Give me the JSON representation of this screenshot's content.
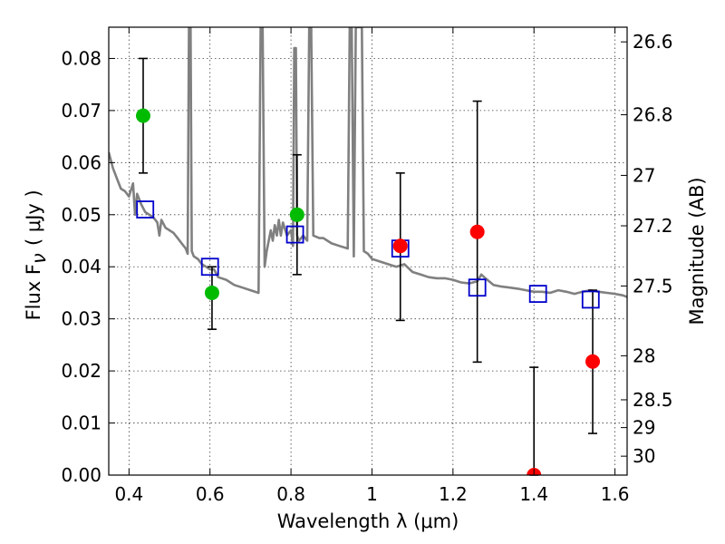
{
  "chart_data": {
    "type": "scatter",
    "xlabel": "Wavelength  λ (μm)",
    "ylabel": "Flux  F",
    "ylabel_sub": "ν",
    "ylabel_unit": "( μJy )",
    "y2label": "Magnitude (AB)",
    "xlim": [
      0.35,
      1.63
    ],
    "ylim": [
      0.0,
      0.086
    ],
    "grid": true,
    "x_ticks": [
      {
        "v": 0.4,
        "label": "0.4"
      },
      {
        "v": 0.6,
        "label": "0.6"
      },
      {
        "v": 0.8,
        "label": "0.8"
      },
      {
        "v": 1.0,
        "label": "1"
      },
      {
        "v": 1.2,
        "label": "1.2"
      },
      {
        "v": 1.4,
        "label": "1.4"
      },
      {
        "v": 1.6,
        "label": "1.6"
      }
    ],
    "y_ticks": [
      {
        "v": 0.0,
        "label": "0.00"
      },
      {
        "v": 0.01,
        "label": "0.01"
      },
      {
        "v": 0.02,
        "label": "0.02"
      },
      {
        "v": 0.03,
        "label": "0.03"
      },
      {
        "v": 0.04,
        "label": "0.04"
      },
      {
        "v": 0.05,
        "label": "0.05"
      },
      {
        "v": 0.06,
        "label": "0.06"
      },
      {
        "v": 0.07,
        "label": "0.07"
      },
      {
        "v": 0.08,
        "label": "0.08"
      }
    ],
    "y2_ticks": [
      {
        "mag": 26.6,
        "label": "26.6"
      },
      {
        "mag": 26.8,
        "label": "26.8"
      },
      {
        "mag": 27.0,
        "label": "27"
      },
      {
        "mag": 27.2,
        "label": "27.2"
      },
      {
        "mag": 27.5,
        "label": "27.5"
      },
      {
        "mag": 28.0,
        "label": "28"
      },
      {
        "mag": 28.5,
        "label": "28.5"
      },
      {
        "mag": 29.0,
        "label": "29"
      },
      {
        "mag": 30.0,
        "label": "30"
      }
    ],
    "colors": {
      "model": "#808080",
      "model_points": "#0000cc",
      "detected": "#00bb00",
      "photometry": "#ff0000",
      "errorbar": "#000000"
    },
    "model_spectrum": [
      [
        0.35,
        0.062
      ],
      [
        0.36,
        0.059
      ],
      [
        0.37,
        0.057
      ],
      [
        0.38,
        0.055
      ],
      [
        0.39,
        0.0545
      ],
      [
        0.4,
        0.0535
      ],
      [
        0.41,
        0.056
      ],
      [
        0.415,
        0.05
      ],
      [
        0.42,
        0.054
      ],
      [
        0.43,
        0.052
      ],
      [
        0.44,
        0.0505
      ],
      [
        0.45,
        0.05
      ],
      [
        0.46,
        0.0495
      ],
      [
        0.47,
        0.0485
      ],
      [
        0.475,
        0.046
      ],
      [
        0.48,
        0.049
      ],
      [
        0.49,
        0.0475
      ],
      [
        0.5,
        0.047
      ],
      [
        0.51,
        0.0465
      ],
      [
        0.52,
        0.0455
      ],
      [
        0.53,
        0.0445
      ],
      [
        0.54,
        0.0435
      ],
      [
        0.545,
        0.0425
      ],
      [
        0.548,
        0.086
      ],
      [
        0.552,
        0.086
      ],
      [
        0.555,
        0.043
      ],
      [
        0.56,
        0.042
      ],
      [
        0.57,
        0.0415
      ],
      [
        0.58,
        0.0405
      ],
      [
        0.59,
        0.04
      ],
      [
        0.6,
        0.0395
      ],
      [
        0.61,
        0.0395
      ],
      [
        0.62,
        0.038
      ],
      [
        0.64,
        0.0375
      ],
      [
        0.66,
        0.0365
      ],
      [
        0.68,
        0.036
      ],
      [
        0.7,
        0.0355
      ],
      [
        0.72,
        0.035
      ],
      [
        0.725,
        0.086
      ],
      [
        0.73,
        0.086
      ],
      [
        0.735,
        0.04
      ],
      [
        0.74,
        0.043
      ],
      [
        0.75,
        0.047
      ],
      [
        0.755,
        0.045
      ],
      [
        0.76,
        0.048
      ],
      [
        0.765,
        0.046
      ],
      [
        0.77,
        0.049
      ],
      [
        0.775,
        0.046
      ],
      [
        0.78,
        0.0485
      ],
      [
        0.79,
        0.046
      ],
      [
        0.8,
        0.047
      ],
      [
        0.805,
        0.044
      ],
      [
        0.808,
        0.082
      ],
      [
        0.812,
        0.082
      ],
      [
        0.815,
        0.046
      ],
      [
        0.82,
        0.045
      ],
      [
        0.83,
        0.046
      ],
      [
        0.84,
        0.045
      ],
      [
        0.845,
        0.086
      ],
      [
        0.85,
        0.086
      ],
      [
        0.855,
        0.046
      ],
      [
        0.87,
        0.0455
      ],
      [
        0.88,
        0.0455
      ],
      [
        0.9,
        0.0445
      ],
      [
        0.92,
        0.044
      ],
      [
        0.94,
        0.0435
      ],
      [
        0.945,
        0.086
      ],
      [
        0.95,
        0.086
      ],
      [
        0.955,
        0.042
      ],
      [
        0.96,
        0.086
      ],
      [
        0.965,
        0.086
      ],
      [
        0.97,
        0.086
      ],
      [
        0.975,
        0.086
      ],
      [
        0.98,
        0.043
      ],
      [
        0.99,
        0.0425
      ],
      [
        1.0,
        0.0415
      ],
      [
        1.02,
        0.041
      ],
      [
        1.04,
        0.0405
      ],
      [
        1.06,
        0.04
      ],
      [
        1.08,
        0.0405
      ],
      [
        1.1,
        0.039
      ],
      [
        1.12,
        0.0385
      ],
      [
        1.14,
        0.038
      ],
      [
        1.16,
        0.0378
      ],
      [
        1.18,
        0.0378
      ],
      [
        1.2,
        0.0375
      ],
      [
        1.22,
        0.037
      ],
      [
        1.24,
        0.0368
      ],
      [
        1.26,
        0.0372
      ],
      [
        1.27,
        0.0385
      ],
      [
        1.28,
        0.0378
      ],
      [
        1.3,
        0.0365
      ],
      [
        1.32,
        0.0362
      ],
      [
        1.34,
        0.036
      ],
      [
        1.36,
        0.0358
      ],
      [
        1.38,
        0.0355
      ],
      [
        1.4,
        0.0352
      ],
      [
        1.42,
        0.0352
      ],
      [
        1.44,
        0.035
      ],
      [
        1.46,
        0.0355
      ],
      [
        1.48,
        0.0352
      ],
      [
        1.5,
        0.0348
      ],
      [
        1.52,
        0.0352
      ],
      [
        1.54,
        0.0355
      ],
      [
        1.56,
        0.0352
      ],
      [
        1.58,
        0.035
      ],
      [
        1.6,
        0.0348
      ],
      [
        1.62,
        0.0345
      ],
      [
        1.63,
        0.0342
      ]
    ],
    "model_points": [
      {
        "x": 0.44,
        "y": 0.051
      },
      {
        "x": 0.6,
        "y": 0.04
      },
      {
        "x": 0.81,
        "y": 0.0462
      },
      {
        "x": 1.07,
        "y": 0.0435
      },
      {
        "x": 1.26,
        "y": 0.036
      },
      {
        "x": 1.41,
        "y": 0.0348
      },
      {
        "x": 1.54,
        "y": 0.0337
      }
    ],
    "detected_points": [
      {
        "x": 0.435,
        "y": 0.069,
        "yerr_low": 0.058,
        "yerr_high": 0.08
      },
      {
        "x": 0.605,
        "y": 0.035,
        "yerr_low": 0.028,
        "yerr_high": 0.04
      },
      {
        "x": 0.815,
        "y": 0.05,
        "yerr_low": 0.0385,
        "yerr_high": 0.0615
      }
    ],
    "photometry_points": [
      {
        "x": 1.07,
        "y": 0.044,
        "yerr_low": 0.0297,
        "yerr_high": 0.058
      },
      {
        "x": 1.26,
        "y": 0.0467,
        "yerr_low": 0.0217,
        "yerr_high": 0.0718
      },
      {
        "x": 1.4,
        "y": 0.0,
        "yerr_low": 0.0,
        "yerr_high": 0.0207
      },
      {
        "x": 1.545,
        "y": 0.0218,
        "yerr_low": 0.008,
        "yerr_high": 0.0355
      }
    ]
  }
}
